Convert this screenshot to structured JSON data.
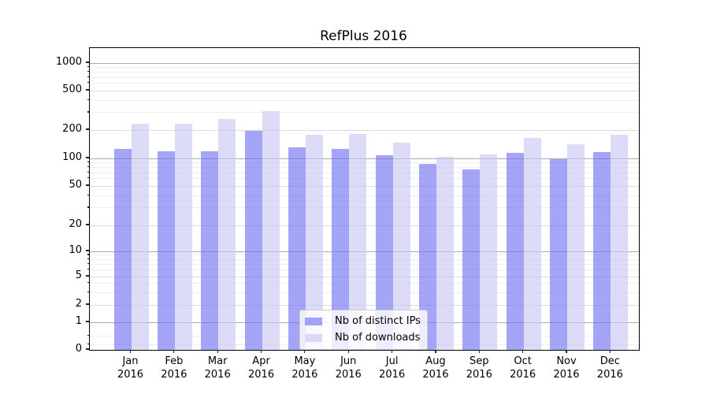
{
  "title": "RefPlus 2016",
  "legend": {
    "items": [
      {
        "label": "Nb of distinct IPs",
        "color": "#6e6ef2"
      },
      {
        "label": "Nb of downloads",
        "color": "#c6c6f3"
      }
    ],
    "position": "lower center"
  },
  "chart_data": {
    "type": "bar",
    "title": "RefPlus 2016",
    "xlabel": "",
    "ylabel": "",
    "yscale": "symlog",
    "categories": [
      "Jan",
      "Feb",
      "Mar",
      "Apr",
      "May",
      "Jun",
      "Jul",
      "Aug",
      "Sep",
      "Oct",
      "Nov",
      "Dec"
    ],
    "x_year_label": "2016",
    "series": [
      {
        "name": "Nb of distinct IPs",
        "values": [
          125,
          118,
          120,
          195,
          130,
          125,
          107,
          87,
          76,
          114,
          99,
          116
        ]
      },
      {
        "name": "Nb of downloads",
        "values": [
          230,
          230,
          260,
          310,
          177,
          181,
          146,
          103,
          110,
          164,
          141,
          177
        ]
      }
    ],
    "y_ticks": [
      0,
      1,
      2,
      5,
      10,
      20,
      50,
      100,
      200,
      500,
      1000
    ],
    "y_major_ticks": [
      1,
      10,
      100,
      1000
    ],
    "y_minor_gridlines": [
      0.2,
      0.5,
      3,
      4,
      6,
      7,
      8,
      9,
      30,
      40,
      60,
      70,
      80,
      90,
      300,
      400,
      600,
      700,
      800,
      900
    ],
    "ylim": [
      0,
      1350
    ],
    "grid": true,
    "legend_position": "lower center",
    "colors": {
      "distinct_ips": "#6e6ef2",
      "downloads": "#c6c6f3",
      "bar_alpha": 0.62
    }
  }
}
